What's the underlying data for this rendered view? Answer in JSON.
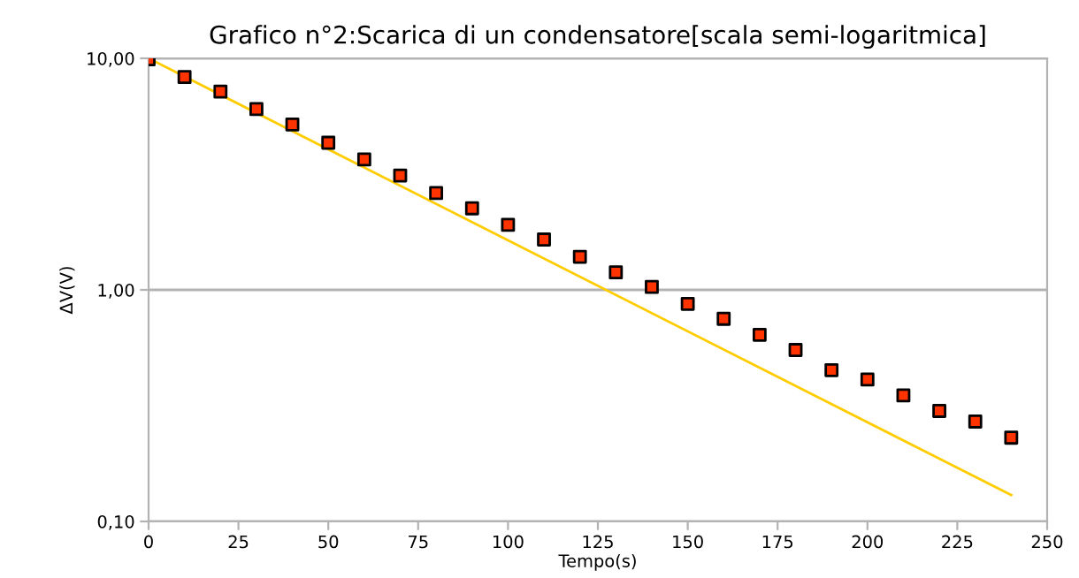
{
  "chart_data": {
    "type": "scatter",
    "title": "Grafico n°2:Scarica di un condensatore[scala semi-logaritmica]",
    "xlabel": "Tempo(s)",
    "ylabel": "ΔV(V)",
    "log": "y",
    "grid": "y",
    "legend": false,
    "xlim": [
      0,
      250
    ],
    "xticks": [
      0,
      25,
      50,
      75,
      100,
      125,
      150,
      175,
      200,
      225,
      250
    ],
    "ylim": [
      0.1,
      10
    ],
    "yticks": [
      {
        "value": 0.1,
        "label": "0,10"
      },
      {
        "value": 1,
        "label": "1,00"
      },
      {
        "value": 10,
        "label": "10,00"
      }
    ],
    "series": [
      {
        "type": "line",
        "color": "#ffcc00",
        "marker": "none",
        "line_style": "solid",
        "x": [
          0,
          240
        ],
        "values": [
          10,
          0.13
        ]
      },
      {
        "color": "#ff3300",
        "marker": "square",
        "x": [
          0,
          10,
          20,
          30,
          40,
          50,
          60,
          70,
          80,
          90,
          100,
          110,
          120,
          130,
          140,
          150,
          160,
          170,
          180,
          190,
          200,
          210,
          220,
          230,
          240
        ],
        "values": [
          9.9,
          8.3,
          7.18,
          6.04,
          5.18,
          4.32,
          3.66,
          3.12,
          2.62,
          2.25,
          1.91,
          1.65,
          1.39,
          1.19,
          1.03,
          0.87,
          0.75,
          0.64,
          0.55,
          0.45,
          0.41,
          0.35,
          0.3,
          0.27,
          0.23
        ]
      }
    ]
  }
}
